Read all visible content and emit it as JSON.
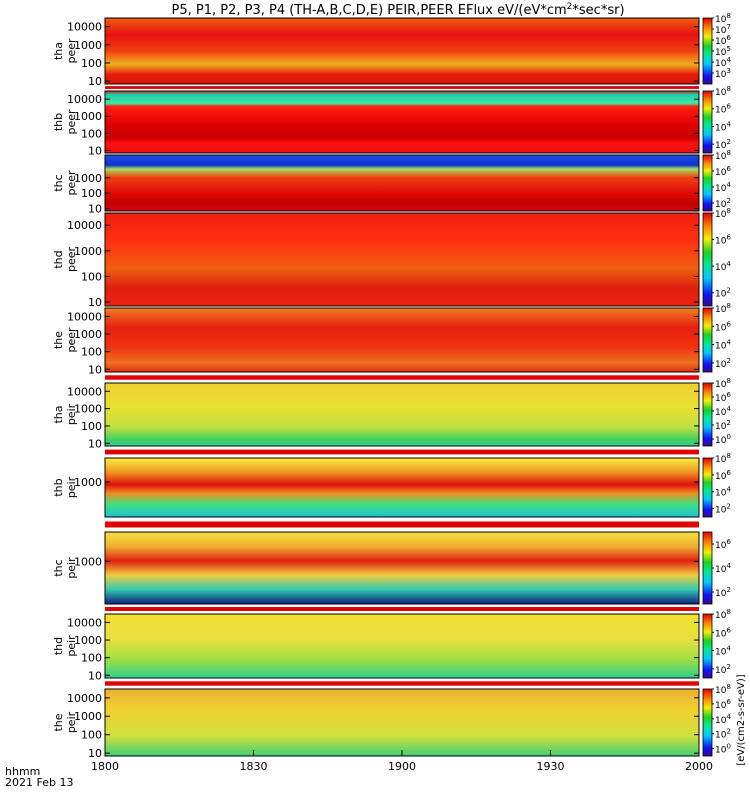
{
  "chart_data": {
    "type": "heatmap",
    "title": "P5, P1, P2, P3, P4 (TH-A,B,C,D,E) PEIR,PEER EFlux eV/(eV*cm",
    "title_sup": "2",
    "title_end": "*sec*sr)",
    "x_ticks": [
      "1800",
      "1830",
      "1900",
      "1930",
      "2000"
    ],
    "x_tick_values": [
      0,
      30,
      60,
      90,
      120
    ],
    "x_range_minutes": [
      0,
      120
    ],
    "x_label_top": "hhmm",
    "x_label_bottom": "2021 Feb 13",
    "colorbar_unit": "[eV/(cm2-s-sr-eV)]",
    "colorbar_unit_bottom": "[eV/(cm2-s-sr-eV)]",
    "panels": [
      {
        "probe": "tha",
        "kind": "peer",
        "yticks": [
          "10000",
          "1000",
          "100",
          "10"
        ],
        "yvals": [
          10000,
          1000,
          100,
          10
        ],
        "ylim": [
          7,
          30000
        ],
        "cbar_ticks": [
          "10",
          "10",
          "10",
          "10",
          "10",
          "10"
        ],
        "cbar_exp": [
          "8",
          "7",
          "6",
          "5",
          "4",
          "3"
        ],
        "cbar_vals": [
          8,
          7,
          6,
          5,
          4,
          3
        ],
        "cbar_range": [
          2,
          8
        ]
      },
      {
        "probe": "thb",
        "kind": "peer",
        "yticks": [
          "10000",
          "1000",
          "100",
          "10"
        ],
        "yvals": [
          10000,
          1000,
          100,
          10
        ],
        "ylim": [
          7,
          30000
        ],
        "cbar_ticks": [
          "10",
          "10",
          "10",
          "10"
        ],
        "cbar_exp": [
          "8",
          "6",
          "4",
          "2"
        ],
        "cbar_vals": [
          8,
          6,
          4,
          2
        ],
        "cbar_range": [
          1,
          8
        ]
      },
      {
        "probe": "thc",
        "kind": "peer",
        "yticks": [
          "1000",
          "100",
          "10"
        ],
        "yvals": [
          1000,
          100,
          10
        ],
        "ylim": [
          7,
          30000
        ],
        "cbar_ticks": [
          "10",
          "10",
          "10",
          "10"
        ],
        "cbar_exp": [
          "8",
          "6",
          "4",
          "2"
        ],
        "cbar_vals": [
          8,
          6,
          4,
          2
        ],
        "cbar_range": [
          1,
          8
        ]
      },
      {
        "probe": "thd",
        "kind": "peer",
        "yticks": [
          "10000",
          "1000",
          "100",
          "10"
        ],
        "yvals": [
          10000,
          1000,
          100,
          10
        ],
        "ylim": [
          7,
          30000
        ],
        "cbar_ticks": [
          "10",
          "10",
          "10",
          "10"
        ],
        "cbar_exp": [
          "8",
          "6",
          "4",
          "2"
        ],
        "cbar_vals": [
          8,
          6,
          4,
          2
        ],
        "cbar_range": [
          1,
          8
        ]
      },
      {
        "probe": "the",
        "kind": "peer",
        "yticks": [
          "10000",
          "1000",
          "100",
          "10"
        ],
        "yvals": [
          10000,
          1000,
          100,
          10
        ],
        "ylim": [
          7,
          30000
        ],
        "cbar_ticks": [
          "10",
          "10",
          "10",
          "10"
        ],
        "cbar_exp": [
          "8",
          "6",
          "4",
          "2"
        ],
        "cbar_vals": [
          8,
          6,
          4,
          2
        ],
        "cbar_range": [
          1,
          8
        ]
      },
      {
        "probe": "tha",
        "kind": "peir",
        "yticks": [
          "10000",
          "1000",
          "100",
          "10"
        ],
        "yvals": [
          10000,
          1000,
          100,
          10
        ],
        "ylim": [
          7,
          30000
        ],
        "cbar_ticks": [
          "10",
          "10",
          "10",
          "10",
          "10"
        ],
        "cbar_exp": [
          "8",
          "6",
          "4",
          "2",
          "0"
        ],
        "cbar_vals": [
          8,
          6,
          4,
          2,
          0
        ],
        "cbar_range": [
          -1,
          8
        ]
      },
      {
        "probe": "thb",
        "kind": "peir",
        "yticks": [
          "1000"
        ],
        "yvals": [
          1000
        ],
        "ylim": [
          7,
          30000
        ],
        "cbar_ticks": [
          "10",
          "10",
          "10",
          "10"
        ],
        "cbar_exp": [
          "8",
          "6",
          "4",
          "2"
        ],
        "cbar_vals": [
          8,
          6,
          4,
          2
        ],
        "cbar_range": [
          1,
          8
        ]
      },
      {
        "probe": "thc",
        "kind": "peir",
        "yticks": [
          "1000"
        ],
        "yvals": [
          1000
        ],
        "ylim": [
          7,
          30000
        ],
        "cbar_ticks": [
          "10",
          "10",
          "10"
        ],
        "cbar_exp": [
          "6",
          "4",
          "2"
        ],
        "cbar_vals": [
          6,
          4,
          2
        ],
        "cbar_range": [
          1,
          7
        ]
      },
      {
        "probe": "thd",
        "kind": "peir",
        "yticks": [
          "10000",
          "1000",
          "100",
          "10"
        ],
        "yvals": [
          10000,
          1000,
          100,
          10
        ],
        "ylim": [
          7,
          30000
        ],
        "cbar_ticks": [
          "10",
          "10",
          "10",
          "10"
        ],
        "cbar_exp": [
          "8",
          "6",
          "4",
          "2"
        ],
        "cbar_vals": [
          8,
          6,
          4,
          2
        ],
        "cbar_range": [
          1,
          8
        ]
      },
      {
        "probe": "the",
        "kind": "peir",
        "yticks": [
          "10000",
          "1000",
          "100",
          "10"
        ],
        "yvals": [
          10000,
          1000,
          100,
          10
        ],
        "ylim": [
          7,
          30000
        ],
        "cbar_ticks": [
          "10",
          "10",
          "10",
          "10",
          "10"
        ],
        "cbar_exp": [
          "8",
          "6",
          "4",
          "2",
          "0"
        ],
        "cbar_vals": [
          8,
          6,
          4,
          2,
          0
        ],
        "cbar_range": [
          -1,
          8
        ]
      }
    ]
  }
}
